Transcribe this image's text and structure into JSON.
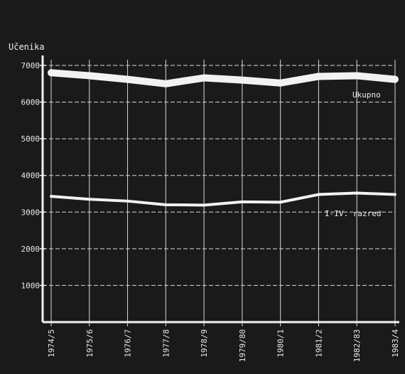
{
  "chart_data": {
    "type": "line",
    "ylabel": "Učenika",
    "categories": [
      "1974/5",
      "1975/6",
      "1976/7",
      "1977/8",
      "1978/9",
      "1979/80",
      "1980/1",
      "1981/2",
      "1982/83",
      "1983/4"
    ],
    "series": [
      {
        "name": "Ukupno",
        "values": [
          6800,
          6720,
          6620,
          6500,
          6660,
          6600,
          6520,
          6700,
          6720,
          6620
        ]
      },
      {
        "name": "I-IV. razred",
        "values": [
          3430,
          3350,
          3300,
          3200,
          3190,
          3280,
          3270,
          3480,
          3520,
          3480
        ]
      }
    ],
    "yticks": [
      "7000",
      "6000",
      "5000",
      "4000",
      "3000",
      "2000",
      "1000"
    ],
    "ylim": [
      0,
      7000
    ],
    "grid": true,
    "colors": {
      "background": "#1a1a1a",
      "lines": "#f2f2f2",
      "grid": "#d8d8d8"
    }
  }
}
